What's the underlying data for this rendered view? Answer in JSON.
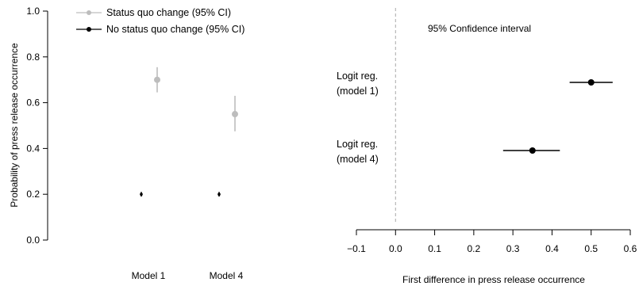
{
  "chart_data": [
    {
      "type": "scatter",
      "ylabel": "Probability of press release occurrence",
      "ylim": [
        0.0,
        1.0
      ],
      "yticks": [
        "0.0",
        "0.2",
        "0.4",
        "0.6",
        "0.8",
        "1.0"
      ],
      "categories": [
        "Model 1",
        "Model 4"
      ],
      "legend": {
        "position": "top-left"
      },
      "series": [
        {
          "name": "Status quo change (95% CI)",
          "color": "#bdbdbd",
          "points": [
            {
              "category": "Model 1",
              "value": 0.7,
              "ci": [
                0.645,
                0.755
              ]
            },
            {
              "category": "Model 4",
              "value": 0.55,
              "ci": [
                0.475,
                0.63
              ]
            }
          ]
        },
        {
          "name": "No status quo change (95% CI)",
          "color": "#000000",
          "points": [
            {
              "category": "Model 1",
              "value": 0.2,
              "ci": [
                0.19,
                0.21
              ]
            },
            {
              "category": "Model 4",
              "value": 0.2,
              "ci": [
                0.19,
                0.21
              ]
            }
          ]
        }
      ]
    },
    {
      "type": "scatter",
      "title": "95% Confidence interval",
      "xlabel": "First difference in press release occurrence",
      "xlim": [
        -0.1,
        0.6
      ],
      "xticks": [
        "−0.1",
        "0.0",
        "0.1",
        "0.2",
        "0.3",
        "0.4",
        "0.5",
        "0.6"
      ],
      "reference_line": 0.0,
      "rows": [
        {
          "label_line1": "Logit reg.",
          "label_line2": "(model 1)",
          "value": 0.5,
          "ci": [
            0.445,
            0.555
          ]
        },
        {
          "label_line1": "Logit reg.",
          "label_line2": "(model 4)",
          "value": 0.35,
          "ci": [
            0.275,
            0.42
          ]
        }
      ]
    }
  ]
}
